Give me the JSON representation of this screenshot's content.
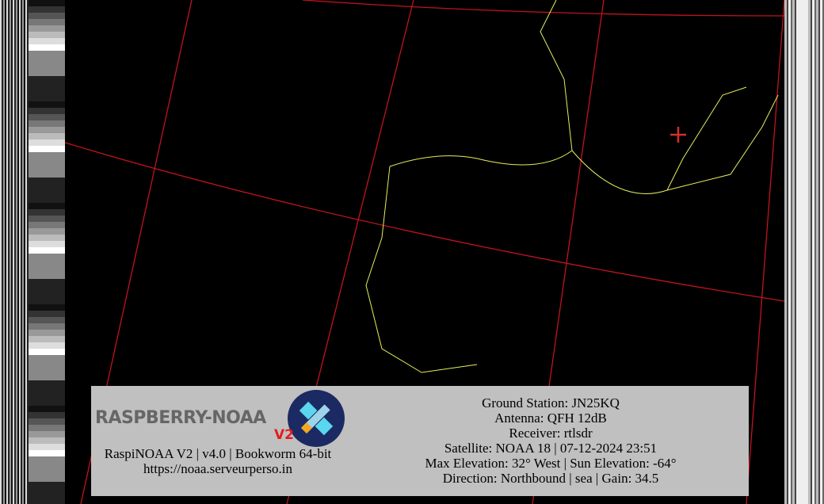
{
  "image": {
    "type": "NOAA APT satellite image (colorized) with map overlay",
    "colors": {
      "cloud_purple": "#8a3cf0",
      "cloud_blue": "#2e4bff",
      "cloud_cyan": "#2ef0e6",
      "cloud_green": "#6cff5a",
      "grid_lines": "#c0141e",
      "borders": "#e6ee5a",
      "coast": "#a0ffa0",
      "marker": "#d23030",
      "panel": "#c0c0c0"
    }
  },
  "logo": {
    "text": "RASPBERRY-NOAA",
    "version_badge": "V2"
  },
  "left_info": {
    "line1": "RaspiNOAA V2 | v4.0 | Bookworm 64-bit",
    "line2": "https://noaa.serveurperso.in"
  },
  "right_info": {
    "ground_station": "Ground Station: JN25KQ",
    "antenna": "Antenna: QFH 12dB",
    "receiver": "Receiver: rtlsdr",
    "satellite": "Satellite: NOAA 18 | 07-12-2024 23:51",
    "elevation": "Max Elevation: 32° West | Sun Elevation: -64°",
    "direction": "Direction: Northbound | sea | Gain: 34.5"
  }
}
